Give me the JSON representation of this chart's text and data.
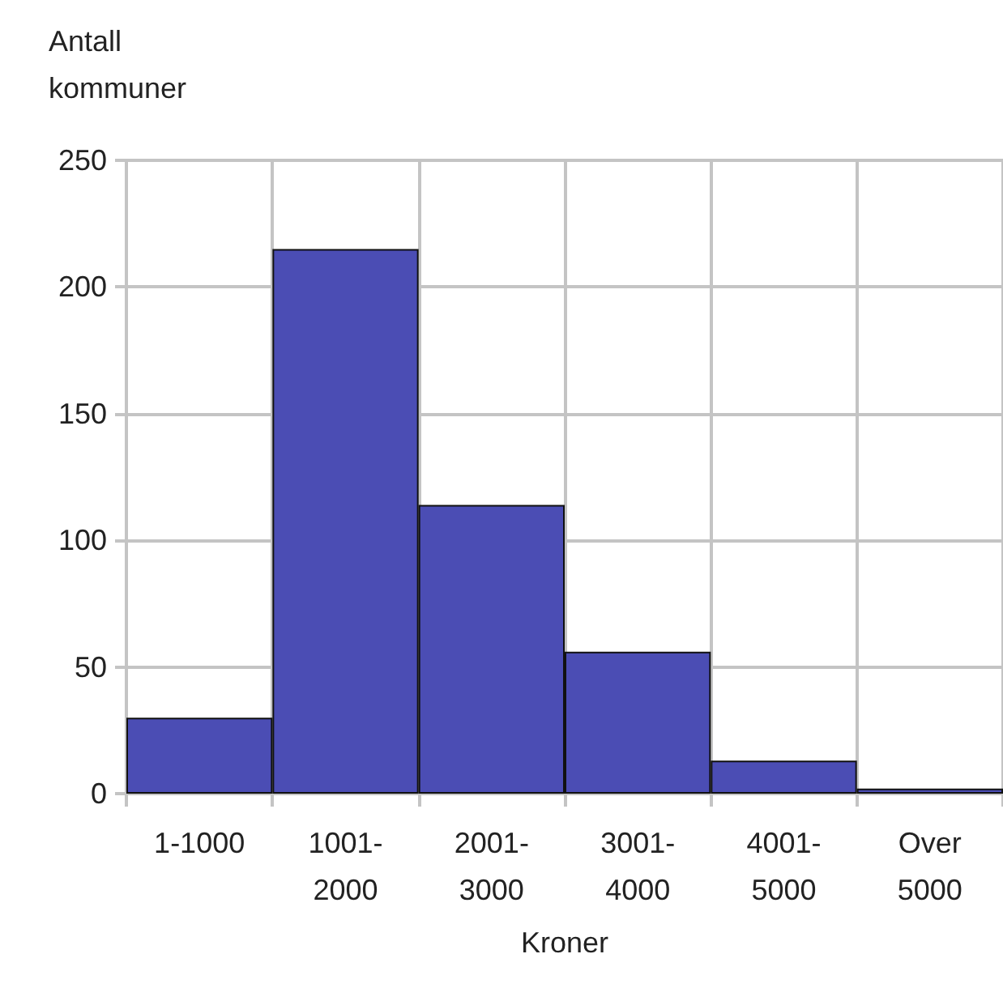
{
  "chart_data": {
    "type": "bar",
    "xlabel": "Kroner",
    "ylabel": "Antall kommuner",
    "categories": [
      "1-1000",
      "1001-2000",
      "2001-3000",
      "3001-4000",
      "4001-5000",
      "Over 5000"
    ],
    "values": [
      30,
      215,
      114,
      56,
      13,
      2
    ],
    "color": "#4b4db4",
    "ylim": [
      0,
      250
    ],
    "yticks": [
      0,
      50,
      100,
      150,
      200,
      250
    ],
    "grid": true
  }
}
